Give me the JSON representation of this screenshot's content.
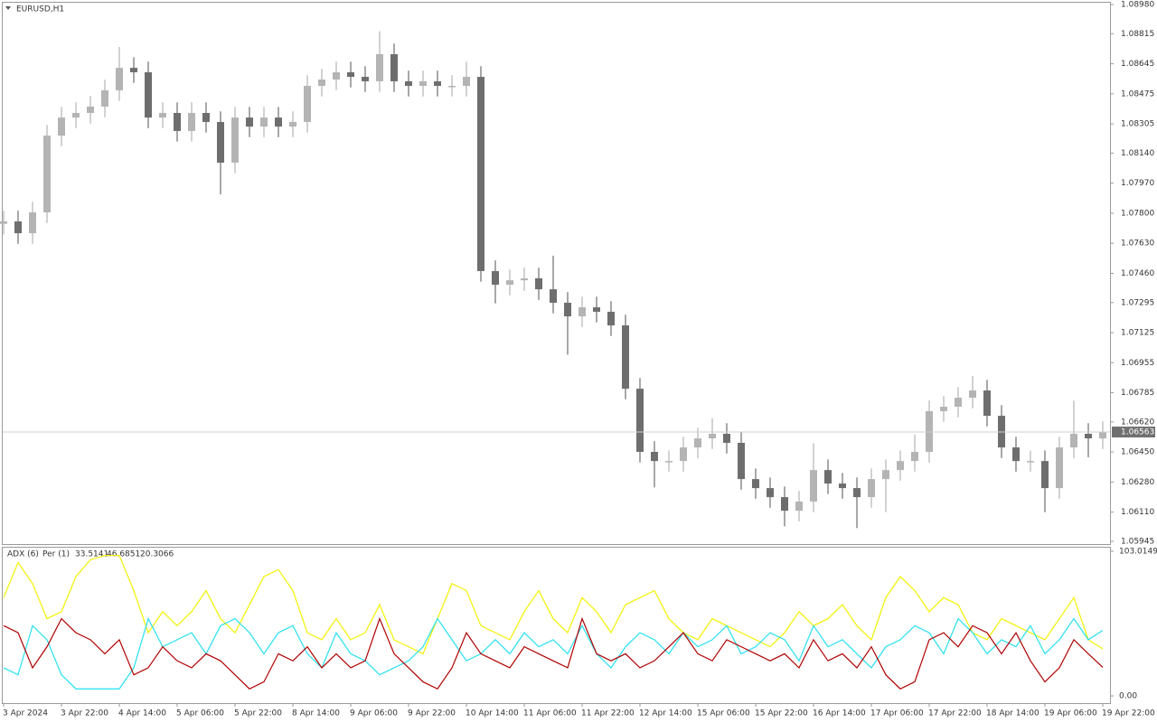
{
  "chart_data": [
    {
      "type": "candlestick",
      "title": "EURUSD,H1",
      "categories": [
        "3 Apr 2024",
        null,
        null,
        null,
        "3 Apr 22:00",
        null,
        null,
        null,
        "4 Apr 14:00",
        null,
        null,
        null,
        "5 Apr 06:00",
        null,
        null,
        null,
        "5 Apr 22:00",
        null,
        null,
        null,
        "8 Apr 14:00",
        null,
        null,
        null,
        "9 Apr 06:00",
        null,
        null,
        null,
        "9 Apr 22:00",
        null,
        null,
        null,
        "10 Apr 14:00",
        null,
        null,
        null,
        "11 Apr 06:00",
        null,
        null,
        null,
        "11 Apr 22:00",
        null,
        null,
        null,
        "12 Apr 14:00",
        null,
        null,
        null,
        "15 Apr 06:00",
        null,
        null,
        null,
        "15 Apr 22:00",
        null,
        null,
        null,
        "16 Apr 14:00",
        null,
        null,
        null,
        "17 Apr 06:00",
        null,
        null,
        null,
        "17 Apr 22:00",
        null,
        null,
        null,
        "18 Apr 14:00",
        null,
        null,
        null,
        "19 Apr 06:00",
        null,
        null,
        null,
        "19 Apr 22:00"
      ],
      "open": [
        1.0774,
        1.07754,
        1.07687,
        1.07805,
        1.08239,
        1.08341,
        1.08367,
        1.08403,
        1.08495,
        1.08622,
        1.08597,
        1.08341,
        1.08367,
        1.08265,
        1.08367,
        1.08316,
        1.08086,
        1.08341,
        1.0829,
        1.08341,
        1.0829,
        1.08316,
        1.0852,
        1.08556,
        1.08597,
        1.08571,
        1.08546,
        1.08699,
        1.08546,
        1.0852,
        1.08546,
        1.0852,
        1.0852,
        1.08571,
        1.07473,
        1.07396,
        1.07421,
        1.07432,
        1.0737,
        1.07294,
        1.07217,
        1.07268,
        1.07243,
        1.07166,
        1.06808,
        1.06451,
        1.06399,
        1.06399,
        1.06476,
        1.06527,
        1.06553,
        1.06502,
        1.06297,
        1.06246,
        1.06195,
        1.06118,
        1.0617,
        1.06348,
        1.06272,
        1.06246,
        1.06195,
        1.06297,
        1.06348,
        1.06399,
        1.06451,
        1.06681,
        1.06706,
        1.06757,
        1.06798,
        1.06655,
        1.06476,
        1.06399,
        1.06399,
        1.06246,
        1.06476,
        1.06553,
        1.06527
      ],
      "high": [
        1.07814,
        1.07814,
        1.07865,
        1.08299,
        1.08401,
        1.08427,
        1.08463,
        1.08555,
        1.0874,
        1.08682,
        1.08657,
        1.08427,
        1.08427,
        1.08427,
        1.08427,
        1.08376,
        1.08401,
        1.08401,
        1.08401,
        1.08401,
        1.08376,
        1.0858,
        1.08616,
        1.08657,
        1.08657,
        1.08631,
        1.0883,
        1.08759,
        1.08606,
        1.08606,
        1.08606,
        1.0858,
        1.08657,
        1.08631,
        1.07533,
        1.07481,
        1.07492,
        1.07492,
        1.0756,
        1.07354,
        1.07328,
        1.07328,
        1.07303,
        1.07226,
        1.06868,
        1.06511,
        1.06459,
        1.06536,
        1.06587,
        1.0664,
        1.06613,
        1.06562,
        1.06357,
        1.06306,
        1.06255,
        1.0623,
        1.065,
        1.06408,
        1.06332,
        1.06306,
        1.06357,
        1.06408,
        1.06459,
        1.0655,
        1.06741,
        1.06766,
        1.06817,
        1.0688,
        1.06858,
        1.06715,
        1.06536,
        1.06459,
        1.06459,
        1.06536,
        1.0674,
        1.06613,
        1.06623
      ],
      "low": [
        1.0768,
        1.07627,
        1.07627,
        1.07745,
        1.08179,
        1.08281,
        1.08307,
        1.08343,
        1.08435,
        1.08537,
        1.08281,
        1.08281,
        1.08205,
        1.08205,
        1.08256,
        1.07907,
        1.08026,
        1.0823,
        1.0823,
        1.0823,
        1.0823,
        1.08256,
        1.0846,
        1.08496,
        1.08511,
        1.08486,
        1.08486,
        1.08486,
        1.0846,
        1.0846,
        1.0846,
        1.0846,
        1.0846,
        1.07413,
        1.0729,
        1.07336,
        1.07361,
        1.0731,
        1.07234,
        1.07,
        1.07157,
        1.07183,
        1.07106,
        1.06748,
        1.06391,
        1.0625,
        1.06339,
        1.06339,
        1.06416,
        1.06467,
        1.06442,
        1.06237,
        1.06186,
        1.06135,
        1.0603,
        1.06058,
        1.0611,
        1.06212,
        1.06186,
        1.0602,
        1.06135,
        1.0611,
        1.06288,
        1.06339,
        1.06391,
        1.06621,
        1.06646,
        1.06697,
        1.06595,
        1.06416,
        1.06339,
        1.06339,
        1.0611,
        1.06186,
        1.06416,
        1.0642,
        1.06467
      ],
      "close": [
        1.07754,
        1.07687,
        1.07805,
        1.08239,
        1.08341,
        1.08367,
        1.08403,
        1.08495,
        1.08622,
        1.08597,
        1.08341,
        1.08367,
        1.08265,
        1.08367,
        1.08316,
        1.08086,
        1.08341,
        1.0829,
        1.08341,
        1.0829,
        1.08316,
        1.0852,
        1.08556,
        1.08597,
        1.08571,
        1.08546,
        1.08699,
        1.08546,
        1.0852,
        1.08546,
        1.0852,
        1.0852,
        1.08571,
        1.07473,
        1.07396,
        1.07421,
        1.07432,
        1.0737,
        1.07294,
        1.07217,
        1.07268,
        1.07243,
        1.07166,
        1.06808,
        1.06451,
        1.06399,
        1.06399,
        1.06476,
        1.06527,
        1.06553,
        1.06502,
        1.06297,
        1.06246,
        1.06195,
        1.06118,
        1.0617,
        1.06348,
        1.06272,
        1.06246,
        1.06195,
        1.06297,
        1.06348,
        1.06399,
        1.06451,
        1.06681,
        1.06706,
        1.06757,
        1.06798,
        1.06655,
        1.06476,
        1.06399,
        1.06399,
        1.06246,
        1.06476,
        1.06553,
        1.06527,
        1.06563
      ],
      "up_color": "#b4b4b4",
      "down_color": "#6e6e6e",
      "last_price_line": true,
      "grid": false,
      "ylim": [
        1.05945,
        1.0898
      ],
      "yticks": [
        1.05945,
        {
          "value": 1.0611,
          "label": "1.06110"
        },
        {
          "value": 1.0628,
          "label": "1.06280"
        },
        {
          "value": 1.0645,
          "label": "1.06450"
        },
        {
          "value": 1.0662,
          "label": "1.06620"
        },
        1.06785,
        1.06955,
        1.07125,
        1.07295,
        {
          "value": 1.0746,
          "label": "1.07460"
        },
        {
          "value": 1.0763,
          "label": "1.07630"
        },
        {
          "value": 1.078,
          "label": "1.07800"
        },
        {
          "value": 1.0797,
          "label": "1.07970"
        },
        {
          "value": 1.0814,
          "label": "1.08140"
        },
        1.08305,
        1.08475,
        1.08645,
        1.08815,
        {
          "value": 1.0898,
          "label": "1.08980"
        }
      ]
    },
    {
      "type": "line",
      "title": "ADX (6)",
      "subtitle": "Per (1)",
      "series": [
        {
          "color": "#f2f200",
          "values": [
            70,
            95,
            80,
            55,
            60,
            85,
            97,
            100,
            100,
            75,
            45,
            60,
            50,
            60,
            75,
            55,
            45,
            65,
            85,
            90,
            75,
            45,
            40,
            55,
            40,
            45,
            65,
            40,
            35,
            30,
            55,
            80,
            75,
            50,
            45,
            40,
            60,
            75,
            55,
            45,
            70,
            60,
            45,
            65,
            70,
            75,
            55,
            45,
            40,
            55,
            50,
            45,
            40,
            35,
            45,
            60,
            50,
            55,
            65,
            50,
            40,
            70,
            85,
            75,
            60,
            70,
            65,
            45,
            40,
            55,
            50,
            45,
            40,
            55,
            70,
            40,
            33.5141
          ]
        },
        {
          "color": "#26e0f0",
          "values": [
            20,
            15,
            50,
            40,
            15,
            5,
            5,
            5,
            5,
            20,
            55,
            35,
            40,
            45,
            30,
            50,
            55,
            45,
            30,
            45,
            50,
            30,
            20,
            45,
            30,
            25,
            15,
            20,
            25,
            35,
            55,
            40,
            25,
            30,
            40,
            30,
            45,
            35,
            40,
            30,
            50,
            30,
            20,
            35,
            45,
            40,
            30,
            45,
            35,
            40,
            50,
            30,
            35,
            45,
            40,
            25,
            50,
            35,
            40,
            30,
            20,
            35,
            40,
            50,
            45,
            30,
            55,
            45,
            30,
            40,
            35,
            50,
            30,
            40,
            55,
            40,
            46.6851
          ]
        },
        {
          "color": "#b00000",
          "values": [
            50,
            45,
            20,
            35,
            55,
            45,
            40,
            30,
            40,
            15,
            20,
            35,
            25,
            20,
            30,
            25,
            15,
            5,
            10,
            30,
            25,
            35,
            20,
            30,
            20,
            25,
            55,
            30,
            20,
            10,
            5,
            20,
            45,
            30,
            25,
            20,
            35,
            30,
            25,
            20,
            55,
            30,
            25,
            30,
            20,
            25,
            35,
            45,
            30,
            25,
            40,
            35,
            30,
            25,
            30,
            20,
            40,
            25,
            30,
            20,
            35,
            15,
            5,
            10,
            40,
            45,
            35,
            50,
            45,
            30,
            45,
            25,
            10,
            20,
            40,
            30,
            20.3066
          ]
        }
      ],
      "ylim": [
        0,
        103.0149
      ],
      "yticks": [
        {
          "value": 0,
          "label": "0.00"
        },
        103.0149
      ]
    }
  ]
}
